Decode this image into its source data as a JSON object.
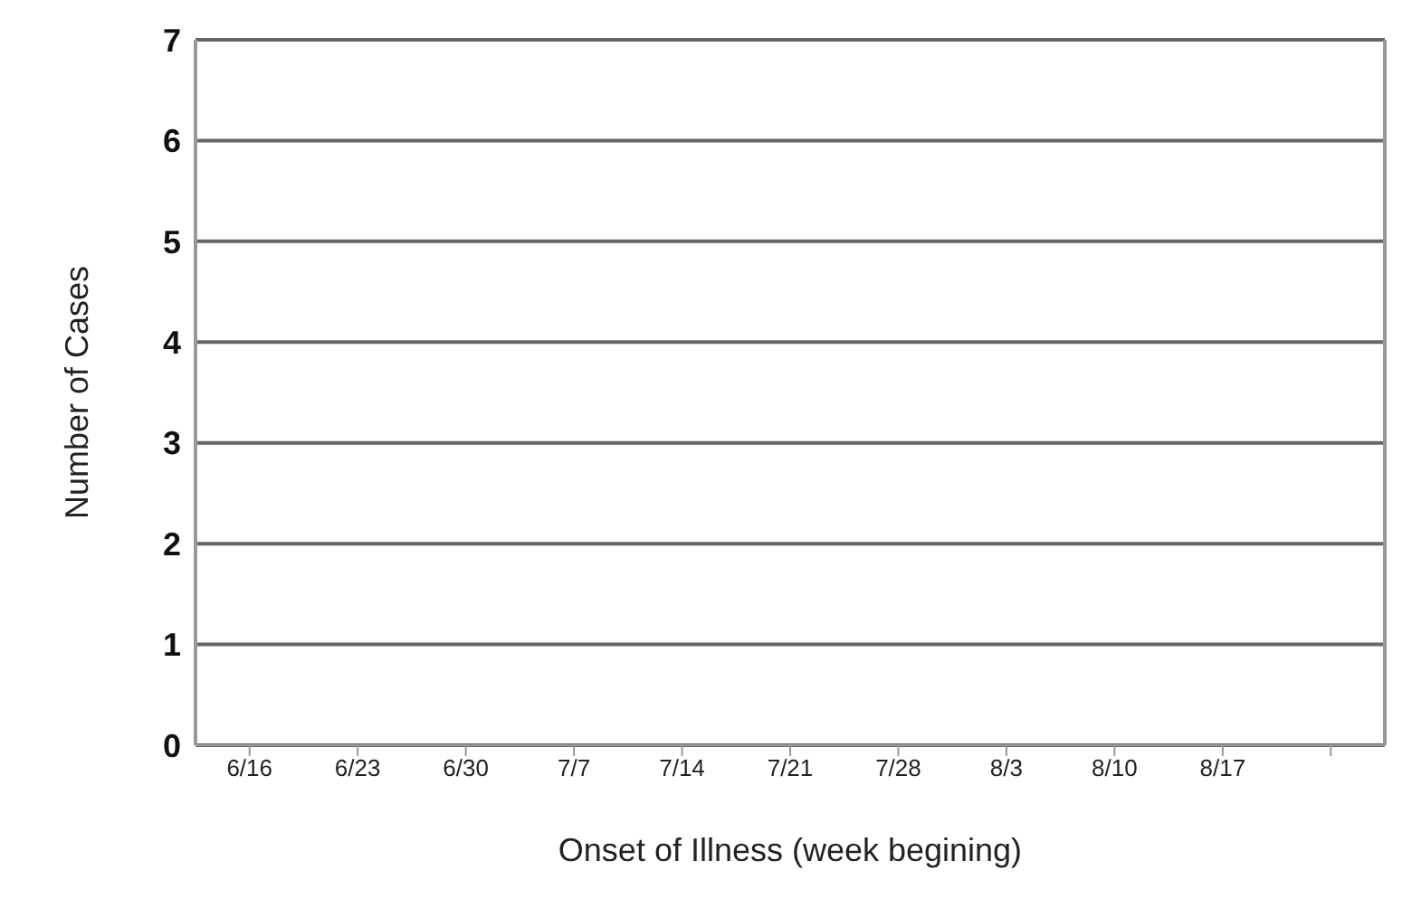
{
  "chart_data": {
    "type": "bar",
    "xlabel": "Onset of Illness (week begining)",
    "ylabel": "Number of Cases",
    "categories": [
      "6/16",
      "6/23",
      "6/30",
      "7/7",
      "7/14",
      "7/21",
      "7/28",
      "8/3",
      "8/10",
      "8/17",
      null
    ],
    "values": [
      0,
      0,
      0,
      0,
      0,
      0,
      0,
      0,
      0,
      0,
      0
    ],
    "ylim": [
      0,
      7
    ],
    "yticks": [
      0,
      1,
      2,
      3,
      4,
      5,
      6,
      7
    ],
    "grid": "y"
  }
}
